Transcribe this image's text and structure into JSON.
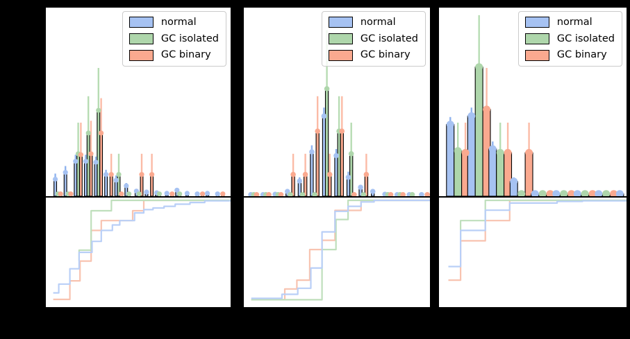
{
  "figure": {
    "background": "#000000",
    "panel_count": 3,
    "visible_text_note": "no axis tick labels or titles are visible; only legends"
  },
  "legend": {
    "entries": [
      {
        "label": "normal",
        "series": "normal"
      },
      {
        "label": "GC isolated",
        "series": "gc_isolated"
      },
      {
        "label": "GC binary",
        "series": "gc_binary"
      }
    ]
  },
  "chart_data": {
    "type": "bar",
    "subtype": "three panels; each = grouped histogram with upward error bars (top) + step CDF curves (bottom)",
    "legend_position": "upper right, semi-transparent white box",
    "units": "normalized 0-1 (axis tick labels not visible in screenshot)",
    "palette": {
      "normal": {
        "fill": "#a6c2f2",
        "err": "#8fb3ee",
        "cdf": "#b9cff7"
      },
      "gc_isolated": {
        "fill": "#aed6ab",
        "err": "#b7dcb3",
        "cdf": "#bfdfbc"
      },
      "gc_binary": {
        "fill": "#faa98f",
        "err": "#fbbba6",
        "cdf": "#f8c3b0"
      }
    },
    "series_names": [
      "normal",
      "GC isolated",
      "GC binary"
    ],
    "panels": [
      {
        "hist": {
          "bin_start": 0.044,
          "bin_pitch": 0.0549,
          "bar_width": 0.0142,
          "series": {
            "normal": [
              0.09,
              0.126,
              0.185,
              0.185,
              0.18,
              0.115,
              0.085,
              0.055,
              0.027,
              0.022,
              0.018,
              0.015,
              0.032,
              0.015,
              0.012,
              0.015,
              0.012
            ],
            "gc_isolated": [
              0.012,
              0.012,
              0.225,
              0.335,
              0.455,
              0,
              0.115,
              0.012,
              0.012,
              0,
              0.012,
              0,
              0.012,
              0,
              0,
              0,
              0
            ],
            "gc_binary": [
              0.012,
              0.012,
              0.22,
              0.225,
              0.335,
              0.115,
              0.012,
              0,
              0.115,
              0.115,
              0,
              0.012,
              0,
              0,
              0.012,
              0,
              0.012
            ]
          },
          "err": {
            "normal": [
              0.12,
              0.16,
              0.22,
              0.22,
              0.21,
              0.14,
              0.11,
              0.07,
              0,
              0,
              0,
              0,
              0,
              0,
              0,
              0,
              0
            ],
            "gc_isolated": [
              0,
              0,
              0.39,
              0.53,
              0.68,
              0,
              0.225,
              0,
              0,
              0,
              0,
              0,
              0,
              0,
              0,
              0,
              0
            ],
            "gc_binary": [
              0,
              0,
              0.39,
              0.4,
              0.52,
              0.225,
              0,
              0,
              0.225,
              0.225,
              0,
              0,
              0,
              0,
              0,
              0,
              0
            ]
          }
        },
        "cdf": {
          "normal": [
            [
              0.04,
              0.13
            ],
            [
              0.07,
              0.13
            ],
            [
              0.07,
              0.21
            ],
            [
              0.13,
              0.21
            ],
            [
              0.13,
              0.35
            ],
            [
              0.18,
              0.35
            ],
            [
              0.18,
              0.5
            ],
            [
              0.25,
              0.5
            ],
            [
              0.25,
              0.6
            ],
            [
              0.3,
              0.6
            ],
            [
              0.3,
              0.7
            ],
            [
              0.36,
              0.7
            ],
            [
              0.36,
              0.75
            ],
            [
              0.4,
              0.75
            ],
            [
              0.4,
              0.79
            ],
            [
              0.48,
              0.79
            ],
            [
              0.48,
              0.86
            ],
            [
              0.53,
              0.86
            ],
            [
              0.53,
              0.89
            ],
            [
              0.58,
              0.89
            ],
            [
              0.58,
              0.905
            ],
            [
              0.64,
              0.905
            ],
            [
              0.64,
              0.92
            ],
            [
              0.7,
              0.92
            ],
            [
              0.7,
              0.94
            ],
            [
              0.78,
              0.94
            ],
            [
              0.78,
              0.955
            ],
            [
              0.86,
              0.955
            ],
            [
              0.86,
              0.97
            ],
            [
              1.0,
              0.97
            ]
          ],
          "gc_isolated": [
            [
              0.18,
              0.42
            ],
            [
              0.18,
              0.52
            ],
            [
              0.245,
              0.52
            ],
            [
              0.245,
              0.88
            ],
            [
              0.355,
              0.88
            ],
            [
              0.355,
              0.975
            ],
            [
              1.0,
              0.975
            ]
          ],
          "gc_binary": [
            [
              0.04,
              0.07
            ],
            [
              0.13,
              0.07
            ],
            [
              0.13,
              0.24
            ],
            [
              0.185,
              0.24
            ],
            [
              0.185,
              0.42
            ],
            [
              0.245,
              0.42
            ],
            [
              0.245,
              0.7
            ],
            [
              0.3,
              0.7
            ],
            [
              0.3,
              0.79
            ],
            [
              0.47,
              0.79
            ],
            [
              0.47,
              0.88
            ],
            [
              0.53,
              0.88
            ],
            [
              0.53,
              0.975
            ],
            [
              1.0,
              0.975
            ]
          ]
        }
      },
      {
        "hist": {
          "bin_start": 0.03,
          "bin_pitch": 0.0655,
          "bar_width": 0.0155,
          "series": {
            "normal": [
              0.008,
              0.008,
              0.01,
              0.025,
              0.08,
              0.235,
              0.425,
              0.215,
              0.1,
              0.047,
              0.025,
              0.01,
              0.008,
              0.008,
              0.008
            ],
            "gc_isolated": [
              0.008,
              0.008,
              0.008,
              0.008,
              0.008,
              0.008,
              0.57,
              0.345,
              0.225,
              0.008,
              0,
              0.008,
              0.008,
              0.008,
              0
            ],
            "gc_binary": [
              0.008,
              0.008,
              0.008,
              0.115,
              0.115,
              0.345,
              0.115,
              0.345,
              0.008,
              0.115,
              0,
              0.008,
              0.008,
              0,
              0.008
            ]
          },
          "err": {
            "normal": [
              0,
              0,
              0,
              0,
              0.1,
              0.27,
              0.47,
              0.25,
              0.13,
              0.06,
              0,
              0,
              0,
              0,
              0
            ],
            "gc_isolated": [
              0,
              0,
              0,
              0,
              0,
              0,
              0.88,
              0.53,
              0.39,
              0,
              0,
              0,
              0,
              0,
              0
            ],
            "gc_binary": [
              0,
              0,
              0,
              0.225,
              0.225,
              0.53,
              0.225,
              0.53,
              0,
              0.225,
              0,
              0,
              0,
              0,
              0
            ]
          }
        },
        "cdf": {
          "normal": [
            [
              0.04,
              0.08
            ],
            [
              0.205,
              0.08
            ],
            [
              0.205,
              0.117
            ],
            [
              0.29,
              0.117
            ],
            [
              0.29,
              0.172
            ],
            [
              0.36,
              0.172
            ],
            [
              0.36,
              0.357
            ],
            [
              0.42,
              0.357
            ],
            [
              0.42,
              0.687
            ],
            [
              0.49,
              0.687
            ],
            [
              0.49,
              0.875
            ],
            [
              0.56,
              0.875
            ],
            [
              0.56,
              0.92
            ],
            [
              0.63,
              0.92
            ],
            [
              0.63,
              0.96
            ],
            [
              0.7,
              0.96
            ],
            [
              0.7,
              0.975
            ],
            [
              1.0,
              0.975
            ]
          ],
          "gc_isolated": [
            [
              0.04,
              0.067
            ],
            [
              0.42,
              0.067
            ],
            [
              0.42,
              0.525
            ],
            [
              0.495,
              0.525
            ],
            [
              0.495,
              0.8
            ],
            [
              0.56,
              0.8
            ],
            [
              0.56,
              0.975
            ],
            [
              1.0,
              0.975
            ]
          ],
          "gc_binary": [
            [
              0.04,
              0.067
            ],
            [
              0.22,
              0.067
            ],
            [
              0.22,
              0.166
            ],
            [
              0.285,
              0.166
            ],
            [
              0.285,
              0.246
            ],
            [
              0.354,
              0.246
            ],
            [
              0.354,
              0.525
            ],
            [
              0.42,
              0.525
            ],
            [
              0.42,
              0.61
            ],
            [
              0.49,
              0.61
            ],
            [
              0.49,
              0.883
            ],
            [
              0.63,
              0.883
            ],
            [
              0.63,
              0.975
            ],
            [
              1.0,
              0.975
            ]
          ]
        }
      },
      {
        "hist": {
          "bin_start": 0.04,
          "bin_pitch": 0.113,
          "bar_width": 0.0404,
          "series": {
            "normal": [
              0.38,
              0.425,
              0.25,
              0.078,
              0.012,
              0.012,
              0.012,
              0.012,
              0.012
            ],
            "gc_isolated": [
              0.24,
              0.685,
              0.23,
              0.012,
              0.012,
              0.012,
              0.012,
              0.012,
              0
            ],
            "gc_binary": [
              0.23,
              0.46,
              0.23,
              0.23,
              0.012,
              0.012,
              0.012,
              0.012,
              0.012
            ]
          },
          "err": {
            "normal": [
              0.42,
              0.47,
              0.29,
              0.1,
              0,
              0,
              0,
              0,
              0
            ],
            "gc_isolated": [
              0.39,
              0.96,
              0.39,
              0,
              0,
              0,
              0,
              0,
              0
            ],
            "gc_binary": [
              0.39,
              0.68,
              0.39,
              0.39,
              0,
              0,
              0,
              0,
              0
            ]
          }
        },
        "cdf": {
          "normal": [
            [
              0.05,
              0.37
            ],
            [
              0.115,
              0.37
            ],
            [
              0.115,
              0.7
            ],
            [
              0.247,
              0.7
            ],
            [
              0.247,
              0.885
            ],
            [
              0.377,
              0.885
            ],
            [
              0.377,
              0.95
            ],
            [
              0.63,
              0.95
            ],
            [
              0.63,
              0.965
            ],
            [
              0.765,
              0.965
            ],
            [
              0.765,
              0.97
            ],
            [
              1.0,
              0.97
            ]
          ],
          "gc_isolated": [
            [
              0.115,
              0.615
            ],
            [
              0.115,
              0.79
            ],
            [
              0.247,
              0.79
            ],
            [
              0.247,
              0.975
            ],
            [
              1.0,
              0.975
            ]
          ],
          "gc_binary": [
            [
              0.05,
              0.246
            ],
            [
              0.115,
              0.246
            ],
            [
              0.115,
              0.605
            ],
            [
              0.247,
              0.605
            ],
            [
              0.247,
              0.79
            ],
            [
              0.377,
              0.79
            ],
            [
              0.377,
              0.975
            ],
            [
              1.0,
              0.975
            ]
          ]
        }
      }
    ]
  }
}
